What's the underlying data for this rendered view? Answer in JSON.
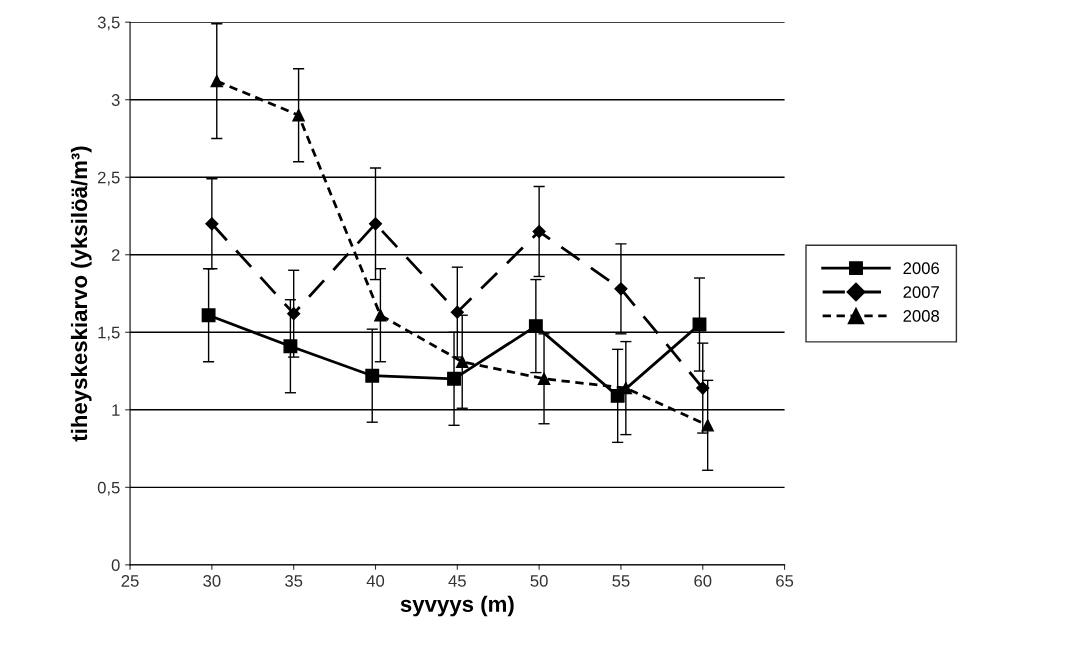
{
  "chart_data": {
    "type": "line",
    "xlabel": "syvyys (m)",
    "ylabel": "tiheyskeskiarvo (yksilöä/m³)",
    "xlim": [
      25,
      65
    ],
    "xticks": [
      25,
      30,
      35,
      40,
      45,
      50,
      55,
      60,
      65
    ],
    "ylim": [
      0,
      3.5
    ],
    "yticks": [
      {
        "value": 0,
        "label": "0"
      },
      {
        "value": 0.5,
        "label": "0,5"
      },
      {
        "value": 1,
        "label": "1"
      },
      {
        "value": 1.5,
        "label": "1,5"
      },
      {
        "value": 2,
        "label": "2"
      },
      {
        "value": 2.5,
        "label": "2,5"
      },
      {
        "value": 3,
        "label": "3"
      },
      {
        "value": 3.5,
        "label": "3,5"
      }
    ],
    "grid": "y",
    "legend": "right",
    "series": [
      {
        "name": "2006",
        "color": "#000000",
        "marker": "square",
        "line_style": "solid",
        "x": [
          29.8,
          34.8,
          39.8,
          44.8,
          49.8,
          54.8,
          59.8
        ],
        "values": [
          1.61,
          1.41,
          1.22,
          1.2,
          1.54,
          1.09,
          1.55
        ],
        "errors": [
          0.3,
          0.3,
          0.3,
          0.3,
          0.3,
          0.3,
          0.3
        ]
      },
      {
        "name": "2007",
        "color": "#000000",
        "marker": "diamond",
        "line_style": "dashed",
        "x": [
          30,
          35,
          40,
          45,
          50,
          55,
          60
        ],
        "values": [
          2.2,
          1.62,
          2.2,
          1.63,
          2.15,
          1.78,
          1.14
        ],
        "errors": [
          0.29,
          0.28,
          0.36,
          0.29,
          0.29,
          0.29,
          0.29
        ]
      },
      {
        "name": "2008",
        "color": "#000000",
        "marker": "triangle",
        "line_style": "dotted",
        "x": [
          30.3,
          35.3,
          40.3,
          45.3,
          50.3,
          55.3,
          60.3
        ],
        "values": [
          3.12,
          2.9,
          1.61,
          1.31,
          1.2,
          1.14,
          0.9
        ],
        "errors": [
          0.37,
          0.3,
          0.3,
          0.3,
          0.29,
          0.3,
          0.29
        ]
      }
    ]
  }
}
